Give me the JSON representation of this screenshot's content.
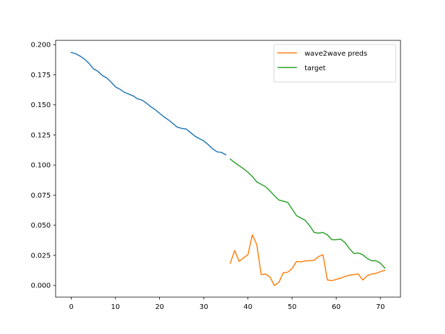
{
  "chart_data": {
    "type": "line",
    "xlim": [
      -3.55,
      74.55
    ],
    "ylim": [
      -0.0097,
      0.2036
    ],
    "x_ticks": [
      0,
      10,
      20,
      30,
      40,
      50,
      60,
      70
    ],
    "y_ticks": [
      0.0,
      0.025,
      0.05,
      0.075,
      0.1,
      0.125,
      0.15,
      0.175,
      0.2
    ],
    "y_tick_labels": [
      "0.000",
      "0.025",
      "0.050",
      "0.075",
      "0.100",
      "0.125",
      "0.150",
      "0.175",
      "0.200"
    ],
    "legend_position": "top-right",
    "grid": false,
    "series": [
      {
        "color": "#1f77b4",
        "x": [
          0,
          1,
          2,
          3,
          4,
          5,
          6,
          7,
          8,
          9,
          10,
          11,
          12,
          13,
          14,
          15,
          16,
          17,
          18,
          19,
          20,
          21,
          22,
          23,
          24,
          25,
          26,
          27,
          28,
          29,
          30,
          31,
          32,
          33,
          34,
          35
        ],
        "y": [
          0.1935,
          0.1925,
          0.1905,
          0.188,
          0.1845,
          0.18,
          0.178,
          0.1745,
          0.1725,
          0.169,
          0.165,
          0.163,
          0.1605,
          0.159,
          0.1575,
          0.155,
          0.154,
          0.1515,
          0.1485,
          0.146,
          0.143,
          0.14,
          0.1375,
          0.1345,
          0.1315,
          0.1305,
          0.13,
          0.127,
          0.124,
          0.122,
          0.12,
          0.117,
          0.1135,
          0.111,
          0.1105,
          0.1085
        ]
      },
      {
        "name": "wave2wave preds",
        "color": "#ff7f0e",
        "x": [
          36,
          37,
          38,
          39,
          40,
          41,
          42,
          43,
          44,
          45,
          46,
          47,
          48,
          49,
          50,
          51,
          52,
          53,
          54,
          55,
          56,
          57,
          58,
          59,
          60,
          61,
          62,
          63,
          64,
          65,
          66,
          67,
          68,
          69,
          70,
          71
        ],
        "y": [
          0.0185,
          0.029,
          0.02,
          0.023,
          0.0255,
          0.042,
          0.034,
          0.009,
          0.0095,
          0.007,
          0.0,
          0.0025,
          0.0105,
          0.011,
          0.014,
          0.02,
          0.0195,
          0.0205,
          0.0205,
          0.021,
          0.024,
          0.0255,
          0.0045,
          0.004,
          0.005,
          0.006,
          0.0075,
          0.0085,
          0.009,
          0.0095,
          0.0045,
          0.008,
          0.0095,
          0.01,
          0.0115,
          0.0125
        ]
      },
      {
        "name": "target",
        "color": "#2ca02c",
        "x": [
          36,
          37,
          38,
          39,
          40,
          41,
          42,
          43,
          44,
          45,
          46,
          47,
          48,
          49,
          50,
          51,
          52,
          53,
          54,
          55,
          56,
          57,
          58,
          59,
          60,
          61,
          62,
          63,
          64,
          65,
          66,
          67,
          68,
          69,
          70,
          71
        ],
        "y": [
          0.105,
          0.102,
          0.0995,
          0.097,
          0.094,
          0.0905,
          0.086,
          0.084,
          0.082,
          0.0785,
          0.0745,
          0.071,
          0.07,
          0.069,
          0.0635,
          0.058,
          0.056,
          0.054,
          0.0495,
          0.044,
          0.0435,
          0.044,
          0.042,
          0.038,
          0.038,
          0.0385,
          0.0355,
          0.0305,
          0.0265,
          0.027,
          0.0255,
          0.0225,
          0.0205,
          0.0205,
          0.0185,
          0.0145
        ]
      }
    ]
  }
}
